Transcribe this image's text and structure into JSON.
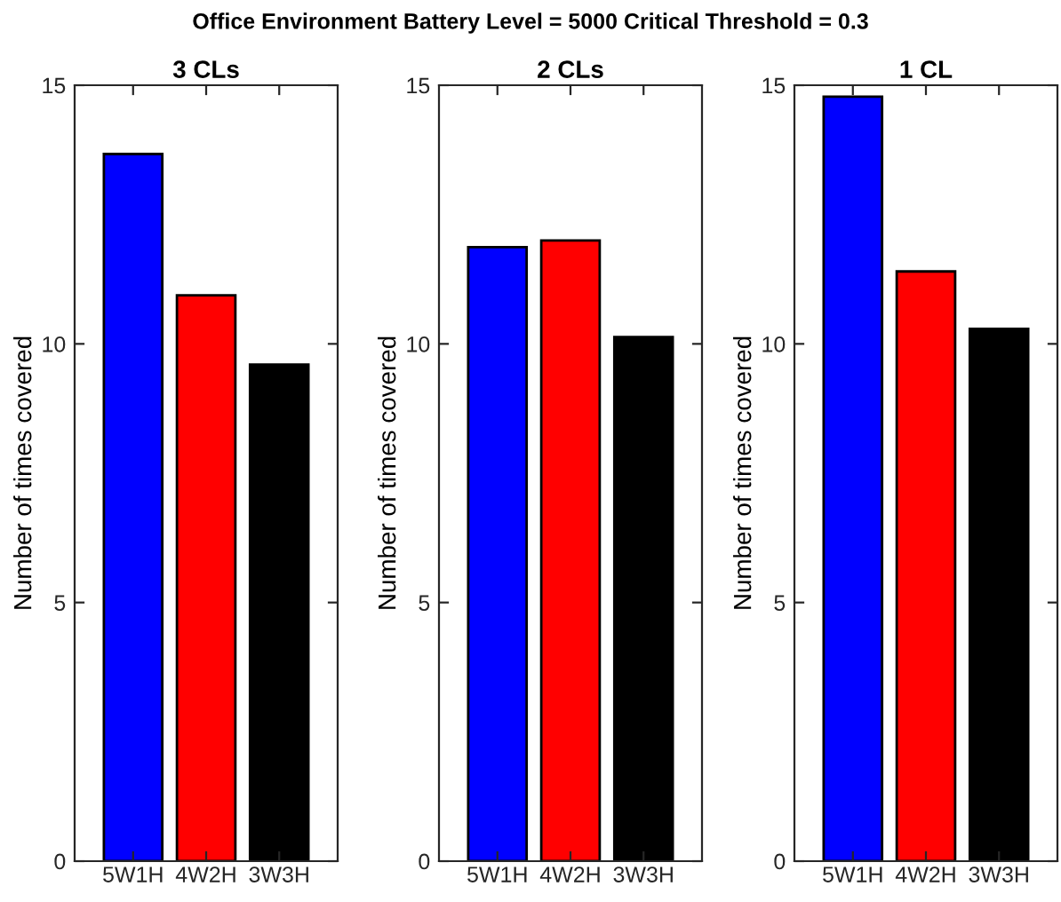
{
  "chart_data": [
    {
      "type": "bar",
      "title": "3 CLs",
      "ylabel": "Number of times covered",
      "categories": [
        "5W1H",
        "4W2H",
        "3W3H"
      ],
      "values": [
        13.67,
        10.94,
        9.6
      ],
      "colors": [
        "#0000ff",
        "#ff0000",
        "#000000"
      ],
      "ylim": [
        0,
        15
      ],
      "yticks": [
        0,
        5,
        10,
        15
      ],
      "annotations": [
        "Office Environment Battery Level = 5000 Critical Threshold = 0.3"
      ]
    },
    {
      "type": "bar",
      "title": "2 CLs",
      "ylabel": "Number of times covered",
      "categories": [
        "5W1H",
        "4W2H",
        "3W3H"
      ],
      "values": [
        11.87,
        12.0,
        10.13
      ],
      "colors": [
        "#0000ff",
        "#ff0000",
        "#000000"
      ],
      "ylim": [
        0,
        15
      ],
      "yticks": [
        0,
        5,
        10,
        15
      ]
    },
    {
      "type": "bar",
      "title": "1 CL",
      "ylabel": "Number of times covered",
      "categories": [
        "5W1H",
        "4W2H",
        "3W3H"
      ],
      "values": [
        14.78,
        11.4,
        10.29
      ],
      "colors": [
        "#0000ff",
        "#ff0000",
        "#000000"
      ],
      "ylim": [
        0,
        15
      ],
      "yticks": [
        0,
        5,
        10,
        15
      ]
    }
  ]
}
